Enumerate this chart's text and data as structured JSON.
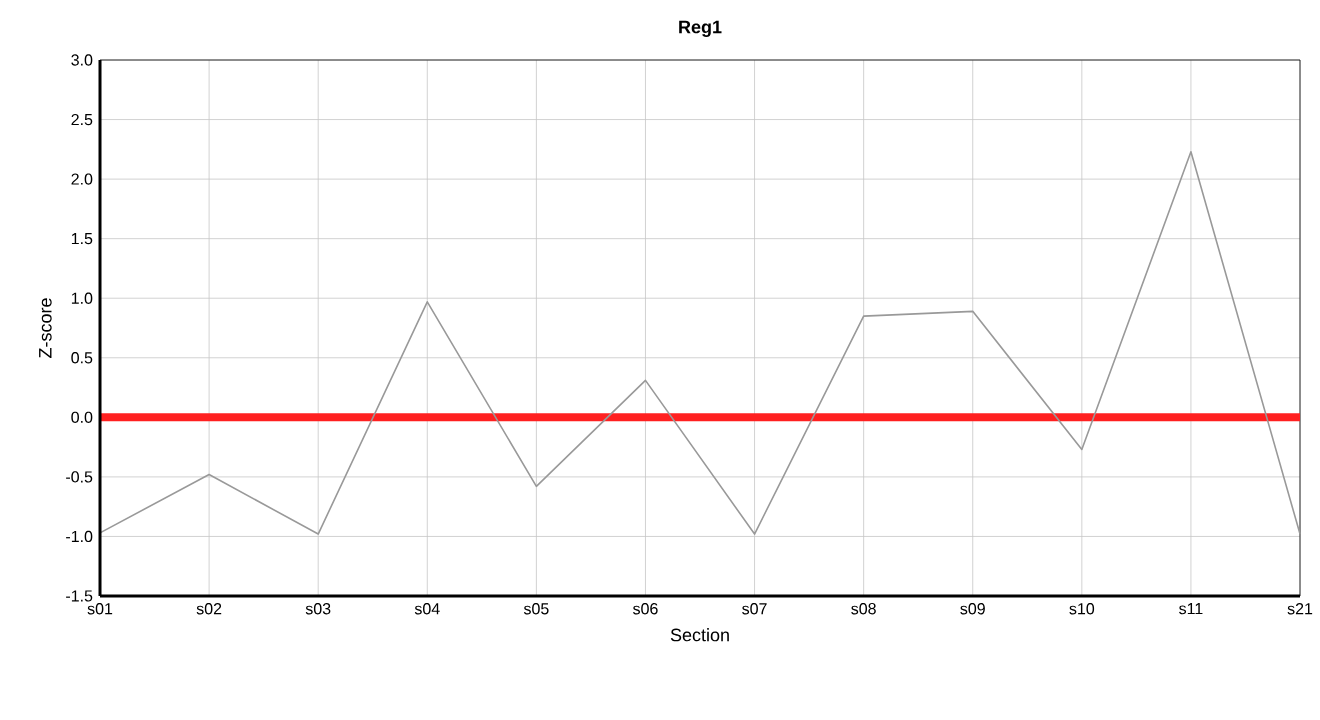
{
  "chart_data": {
    "type": "line",
    "title": "Reg1",
    "xlabel": "Section",
    "ylabel": "Z-score",
    "categories": [
      "s01",
      "s02",
      "s03",
      "s04",
      "s05",
      "s06",
      "s07",
      "s08",
      "s09",
      "s10",
      "s11",
      "s21"
    ],
    "series": [
      {
        "color": "#999999",
        "values": [
          -0.97,
          -0.48,
          -0.98,
          0.97,
          -0.58,
          0.31,
          -0.98,
          0.85,
          0.89,
          -0.27,
          2.23,
          -0.98
        ]
      }
    ],
    "ylim": [
      -1.5,
      3.0
    ],
    "yticks": [
      {
        "value": -1.5,
        "label": "-1.5"
      },
      {
        "value": -1.0,
        "label": "-1.0"
      },
      {
        "value": -0.5,
        "label": "-0.5"
      },
      {
        "value": 0,
        "label": "0.0"
      },
      {
        "value": 0.5,
        "label": "0.5"
      },
      {
        "value": 1.0,
        "label": "1.0"
      },
      {
        "value": 1.5,
        "label": "1.5"
      },
      {
        "value": 2.0,
        "label": "2.0"
      },
      {
        "value": 2.5,
        "label": "2.5"
      },
      {
        "value": 3.0,
        "label": "3.0"
      }
    ],
    "ref_lines": [
      {
        "axis": "y",
        "value": 0,
        "color": "#ff2020"
      }
    ],
    "grid": true,
    "marker": "none",
    "line_style": "solid"
  }
}
